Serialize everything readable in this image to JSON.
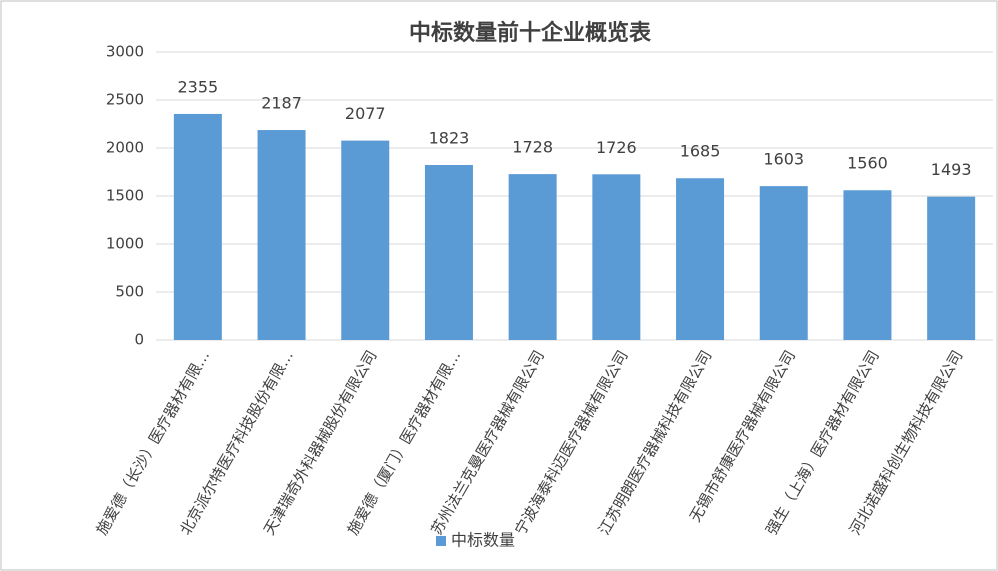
{
  "chart_data": {
    "type": "bar",
    "title": "中标数量前十企业概览表",
    "categories": [
      "施爱德（长沙）医疗器材有限…",
      "北京派尔特医疗科技股份有限…",
      "天津瑞奇外科器械股份有限公司",
      "施爱德（厦门）医疗器材有限…",
      "苏州法兰克曼医疗器械有限公司",
      "宁波海泰科迈医疗器械有限公司",
      "江苏明朗医疗器械科技有限公司",
      "无锡市舒康医疗器械有限公司",
      "强生（上海）医疗器材有限公司",
      "河北诺盛科创生物科技有限公司"
    ],
    "series": [
      {
        "name": "中标数量",
        "color": "#5b9bd5",
        "values": [
          2355,
          2187,
          2077,
          1823,
          1728,
          1726,
          1685,
          1603,
          1560,
          1493
        ]
      }
    ],
    "ylim": [
      0,
      3000
    ],
    "yticks": [
      0,
      500,
      1000,
      1500,
      2000,
      2500,
      3000
    ],
    "grid": true,
    "legend": "bottom"
  }
}
